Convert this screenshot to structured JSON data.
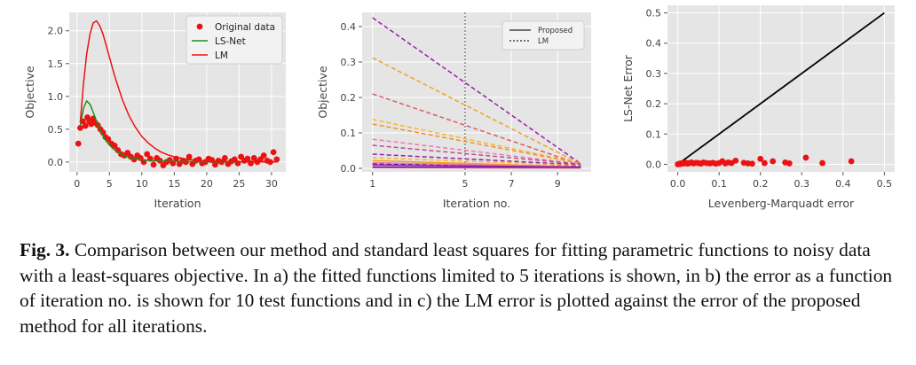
{
  "caption": {
    "label": "Fig. 3.",
    "text": "Comparison between our method and standard least squares for fitting parametric functions to noisy data with a least-squares objective. In a) the fitted functions limited to 5 iterations is shown, in b) the error as a function of iteration no. is shown for 10 test functions and in c) the LM error is plotted against the error of the proposed method for all iterations."
  },
  "chart_data": [
    {
      "type": "scatter",
      "xlabel": "Iteration",
      "ylabel": "Objective",
      "xlim": [
        -1.2,
        32.2
      ],
      "ylim": [
        -0.15,
        2.28
      ],
      "xticks": [
        0,
        5,
        10,
        15,
        20,
        25,
        30
      ],
      "yticks": [
        0.0,
        0.5,
        1.0,
        1.5,
        2.0
      ],
      "grid": true,
      "legend_position": "top-right",
      "series": [
        {
          "name": "Original data",
          "kind": "scatter",
          "color": "#ee1111",
          "x": [
            0.2,
            0.5,
            0.9,
            1.3,
            1.6,
            1.9,
            2.2,
            2.5,
            2.8,
            3.2,
            3.6,
            4.0,
            4.4,
            4.8,
            5.3,
            5.8,
            6.3,
            6.8,
            7.3,
            7.8,
            8.3,
            8.8,
            9.3,
            9.8,
            10.3,
            10.8,
            11.3,
            11.8,
            12.3,
            12.8,
            13.3,
            13.8,
            14.3,
            14.8,
            15.3,
            15.8,
            16.3,
            16.8,
            17.3,
            17.8,
            18.3,
            18.8,
            19.3,
            19.8,
            20.3,
            20.8,
            21.3,
            21.8,
            22.3,
            22.8,
            23.3,
            23.8,
            24.3,
            24.8,
            25.3,
            25.8,
            26.3,
            26.8,
            27.3,
            27.8,
            28.3,
            28.8,
            29.3,
            29.8,
            30.3,
            30.8
          ],
          "y": [
            0.28,
            0.52,
            0.62,
            0.55,
            0.68,
            0.62,
            0.58,
            0.66,
            0.6,
            0.56,
            0.5,
            0.45,
            0.38,
            0.35,
            0.28,
            0.25,
            0.18,
            0.12,
            0.1,
            0.14,
            0.08,
            0.04,
            0.1,
            0.06,
            0.0,
            0.12,
            0.05,
            -0.04,
            0.06,
            0.02,
            -0.05,
            0.0,
            0.03,
            -0.02,
            0.05,
            -0.03,
            0.02,
            0.0,
            0.08,
            -0.03,
            0.02,
            0.04,
            -0.02,
            0.0,
            0.05,
            0.03,
            -0.04,
            0.02,
            0.0,
            0.06,
            -0.03,
            0.01,
            0.04,
            -0.02,
            0.08,
            0.02,
            0.05,
            -0.02,
            0.06,
            0.0,
            0.04,
            0.1,
            0.02,
            0.0,
            0.15,
            0.04
          ]
        },
        {
          "name": "LS-Net",
          "kind": "line",
          "color": "#228b22",
          "x": [
            0.5,
            1.0,
            1.5,
            2.0,
            2.5,
            3.0,
            3.5,
            4.0,
            4.5,
            5.0,
            5.5,
            6.0,
            6.5,
            7.0,
            8.0,
            9.0,
            10.0,
            11.0,
            12.0,
            14.0,
            16.0,
            18.0,
            20.0,
            24.0,
            28.0,
            31.0
          ],
          "y": [
            0.55,
            0.82,
            0.93,
            0.88,
            0.76,
            0.62,
            0.5,
            0.4,
            0.32,
            0.26,
            0.21,
            0.17,
            0.14,
            0.11,
            0.07,
            0.05,
            0.035,
            0.025,
            0.018,
            0.012,
            0.008,
            0.005,
            0.004,
            0.003,
            0.002,
            0.002
          ]
        },
        {
          "name": "LM",
          "kind": "line",
          "color": "#ee1111",
          "x": [
            0.5,
            1.0,
            1.5,
            2.0,
            2.5,
            3.0,
            3.5,
            4.0,
            4.5,
            5.0,
            5.5,
            6.0,
            7.0,
            8.0,
            9.0,
            10.0,
            11.0,
            12.0,
            13.0,
            14.0,
            15.0,
            16.0,
            17.0,
            18.0,
            20.0,
            22.0,
            25.0,
            28.0,
            31.0
          ],
          "y": [
            0.6,
            1.2,
            1.65,
            1.95,
            2.12,
            2.15,
            2.08,
            1.95,
            1.78,
            1.6,
            1.42,
            1.25,
            0.95,
            0.71,
            0.53,
            0.39,
            0.29,
            0.21,
            0.15,
            0.11,
            0.08,
            0.06,
            0.04,
            0.03,
            0.016,
            0.009,
            0.004,
            0.002,
            0.001
          ]
        }
      ]
    },
    {
      "type": "line",
      "xlabel": "Iteration no.",
      "ylabel": "Objective",
      "xlim": [
        0.55,
        10.45
      ],
      "ylim": [
        -0.01,
        0.44
      ],
      "xticks": [
        1,
        5,
        7,
        9
      ],
      "yticks": [
        0.0,
        0.1,
        0.2,
        0.3,
        0.4
      ],
      "vline_x": 5,
      "grid": true,
      "legend_position": "top-right",
      "legend": [
        {
          "label": "Proposed",
          "style": "solid"
        },
        {
          "label": "LM",
          "style": "dashed"
        }
      ],
      "x": [
        1,
        10
      ],
      "series": [
        {
          "style": "dashed",
          "color": "#9b1ca8",
          "values": [
            0.425,
            0.013
          ]
        },
        {
          "style": "dashed",
          "color": "#f4a01d",
          "values": [
            0.312,
            0.012
          ]
        },
        {
          "style": "dashed",
          "color": "#e25c5c",
          "values": [
            0.21,
            0.011
          ]
        },
        {
          "style": "dashed",
          "color": "#ffb22a",
          "values": [
            0.138,
            0.015
          ]
        },
        {
          "style": "dashed",
          "color": "#f0902a",
          "values": [
            0.125,
            0.014
          ]
        },
        {
          "style": "dashed",
          "color": "#ee7aa6",
          "values": [
            0.082,
            0.012
          ]
        },
        {
          "style": "dashed",
          "color": "#c44a8e",
          "values": [
            0.065,
            0.012
          ]
        },
        {
          "style": "dashed",
          "color": "#9b1ca8",
          "values": [
            0.04,
            0.01
          ]
        },
        {
          "style": "dashed",
          "color": "#ffb22a",
          "values": [
            0.03,
            0.008
          ]
        },
        {
          "style": "dashed",
          "color": "#4b00a0",
          "values": [
            0.012,
            0.006
          ]
        },
        {
          "style": "solid",
          "color": "#f4a01d",
          "values": [
            0.022,
            0.004
          ]
        },
        {
          "style": "solid",
          "color": "#ee7aa6",
          "values": [
            0.016,
            0.004
          ]
        },
        {
          "style": "solid",
          "color": "#9b1ca8",
          "values": [
            0.01,
            0.003
          ]
        },
        {
          "style": "solid",
          "color": "#4b00a0",
          "values": [
            0.004,
            0.002
          ]
        },
        {
          "style": "solid",
          "color": "#c44a8e",
          "values": [
            0.002,
            0.001
          ]
        }
      ]
    },
    {
      "type": "scatter",
      "xlabel": "Levenberg-Marquadt error",
      "ylabel": "LS-Net Error",
      "xlim": [
        -0.025,
        0.525
      ],
      "ylim": [
        -0.025,
        0.525
      ],
      "xticks": [
        0.0,
        0.1,
        0.2,
        0.3,
        0.4,
        0.5
      ],
      "yticks": [
        0.0,
        0.1,
        0.2,
        0.3,
        0.4,
        0.5
      ],
      "grid": true,
      "identity_line": {
        "x": [
          0,
          0.5
        ],
        "y": [
          0,
          0.5
        ],
        "color": "#000000"
      },
      "series": [
        {
          "kind": "scatter",
          "color": "#ee1111",
          "x": [
            0.0,
            0.002,
            0.004,
            0.006,
            0.008,
            0.01,
            0.013,
            0.016,
            0.02,
            0.024,
            0.028,
            0.033,
            0.038,
            0.044,
            0.05,
            0.056,
            0.062,
            0.07,
            0.078,
            0.085,
            0.092,
            0.1,
            0.108,
            0.115,
            0.122,
            0.13,
            0.14,
            0.16,
            0.17,
            0.18,
            0.2,
            0.21,
            0.23,
            0.26,
            0.27,
            0.31,
            0.35,
            0.42
          ],
          "y": [
            0.0,
            0.001,
            0.002,
            0.001,
            0.003,
            0.002,
            0.004,
            0.003,
            0.005,
            0.002,
            0.004,
            0.006,
            0.003,
            0.005,
            0.004,
            0.002,
            0.006,
            0.004,
            0.003,
            0.005,
            0.002,
            0.004,
            0.01,
            0.003,
            0.006,
            0.004,
            0.012,
            0.005,
            0.003,
            0.002,
            0.018,
            0.004,
            0.01,
            0.006,
            0.003,
            0.022,
            0.004,
            0.01
          ]
        }
      ]
    }
  ]
}
